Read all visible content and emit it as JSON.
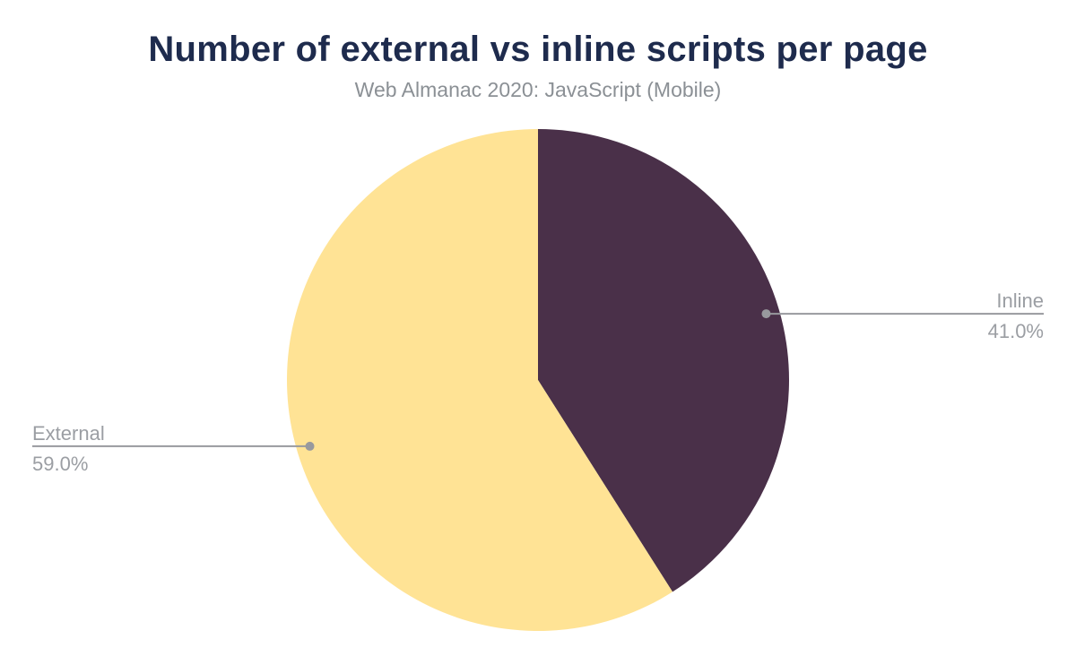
{
  "chart_data": {
    "type": "pie",
    "title": "Number of external vs inline scripts per page",
    "subtitle": "Web Almanac 2020: JavaScript (Mobile)",
    "start_angle_deg": 0,
    "direction": "clockwise",
    "legend_position": "outside-labels-with-leader-lines",
    "slices": [
      {
        "label": "Inline",
        "value": 41.0,
        "pct_label": "41.0%",
        "color": "#4A3049"
      },
      {
        "label": "External",
        "value": 59.0,
        "pct_label": "59.0%",
        "color": "#FFE395"
      }
    ]
  },
  "styles": {
    "background": "#FFFFFF",
    "title_color": "#1E2B4D",
    "subtitle_color": "#8B9095",
    "label_color": "#9B9EA3",
    "leader_line_color": "#98999E"
  }
}
